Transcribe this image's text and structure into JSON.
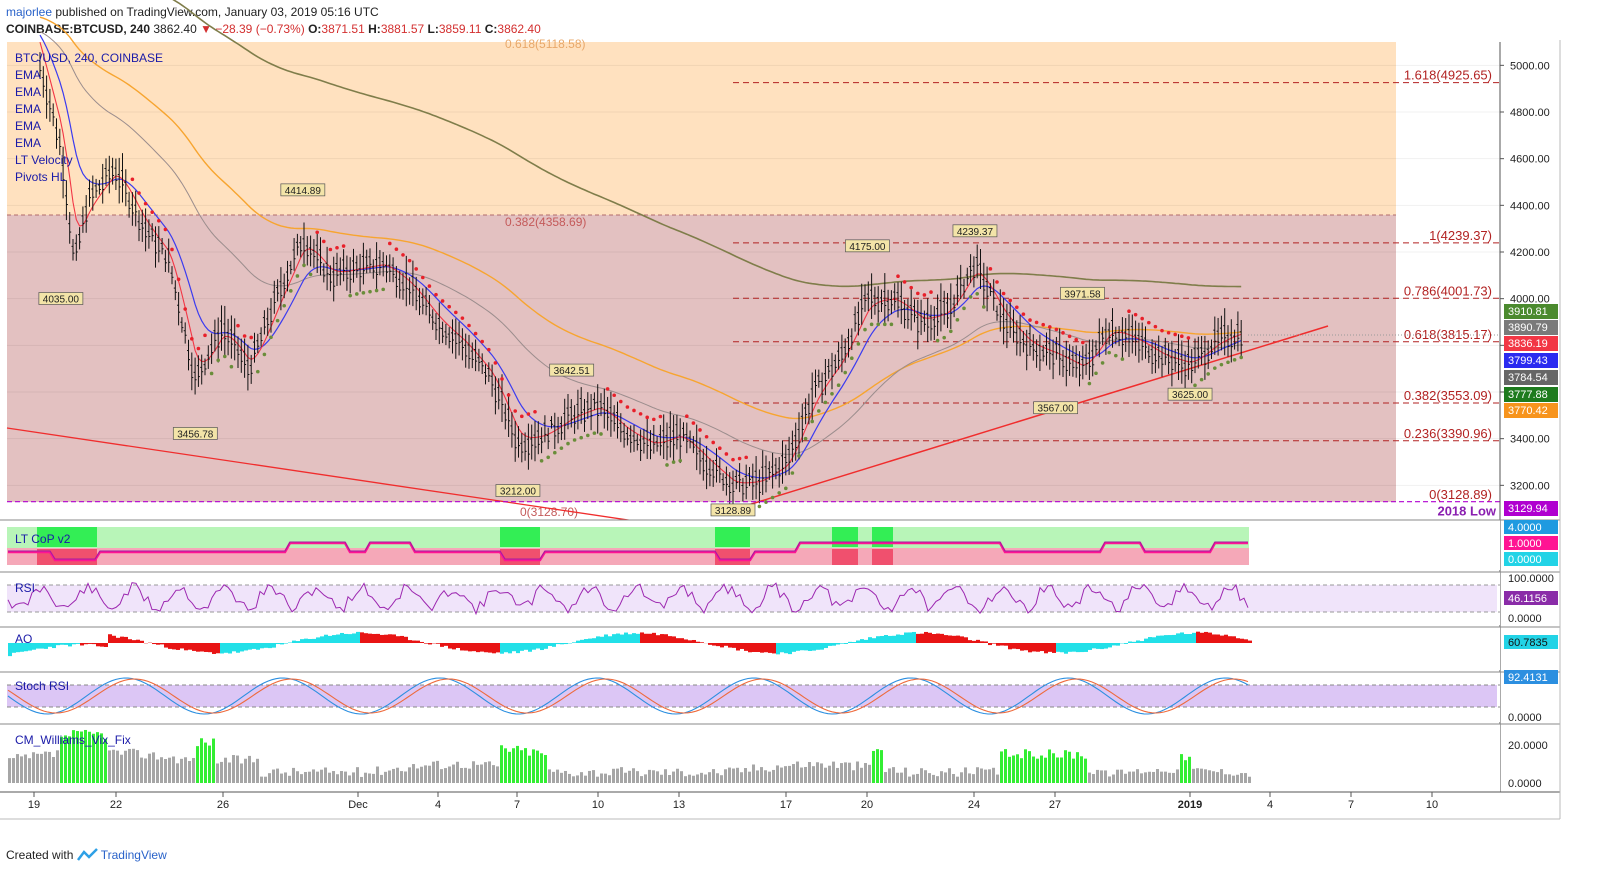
{
  "header": {
    "author": "majorlee",
    "published_text": "published on TradingView.com, January 03, 2019 05:16 UTC",
    "symbol": "COINBASE:BTCUSD, 240",
    "price": "3862.40",
    "change": "▼ −28.39 (−0.73%)",
    "o_label": "O:",
    "o_value": "3871.51",
    "h_label": "H:",
    "h_value": "3881.57",
    "l_label": "L:",
    "l_value": "3859.11",
    "c_label": "C:",
    "c_value": "3862.40"
  },
  "legend": [
    "BTC/USD, 240, COINBASE",
    "EMA",
    "EMA",
    "EMA",
    "EMA",
    "EMA",
    "LT Velocity",
    "Pivots HL"
  ],
  "panes": {
    "cop": "LT CoP v2",
    "rsi": "RSI",
    "ao": "AO",
    "stoch": "Stoch RSI",
    "vix": "CM_Williams_Vix_Fix"
  },
  "footer": {
    "created_with": "Created with",
    "brand": "TradingView"
  },
  "colors": {
    "up_zone": "#ffe1bf",
    "range_zone": "#e3c1c1",
    "ema_red": "#f23645",
    "ema_blue": "#3b3bf0",
    "ema_orange": "#f7a530",
    "ema_olive": "#7f7d4a",
    "ema_gray": "#9b8d8d",
    "trendline": "#f02d2d",
    "rsi": "#9c27b0",
    "ao_up": "#22e0e8",
    "ao_down": "#e81414",
    "stoch_k": "#2c8fe0",
    "stoch_d": "#ee6a3c",
    "vix_bar": "#a6a6a6",
    "vix_spike": "#33ee33"
  },
  "chart_data": {
    "type": "candlestick",
    "title": "BTC/USD, 240, COINBASE",
    "y_axis": {
      "ticks": [
        3200,
        3400,
        3600,
        3800,
        4000,
        4200,
        4400,
        4600,
        4800,
        5000
      ],
      "tick_labels": [
        "3200.00",
        "3400.00",
        "3600.00",
        "3800.00",
        "4000.00",
        "4200.00",
        "4400.00",
        "4600.00",
        "4800.00",
        "5000.00"
      ],
      "range": [
        3060,
        5100
      ]
    },
    "x_axis": {
      "tick_labels": [
        "19",
        "22",
        "26",
        "Dec",
        "4",
        "7",
        "10",
        "13",
        "17",
        "20",
        "24",
        "27",
        "2019",
        "4",
        "7",
        "10"
      ],
      "range": [
        "2018-11-19",
        "2019-01-10"
      ]
    },
    "price_path": [
      [
        "2018-11-19",
        5100
      ],
      [
        "2018-11-20",
        4650
      ],
      [
        "2018-11-20T12:00",
        4150
      ],
      [
        "2018-11-21",
        4420
      ],
      [
        "2018-11-22",
        4560
      ],
      [
        "2018-11-23",
        4320
      ],
      [
        "2018-11-24",
        4170
      ],
      [
        "2018-11-25",
        3650
      ],
      [
        "2018-11-26",
        3880
      ],
      [
        "2018-11-27",
        3700
      ],
      [
        "2018-11-28",
        4000
      ],
      [
        "2018-11-29",
        4260
      ],
      [
        "2018-11-30",
        4100
      ],
      [
        "2018-12-01",
        4130
      ],
      [
        "2018-12-02",
        4150
      ],
      [
        "2018-12-03",
        4050
      ],
      [
        "2018-12-04",
        3900
      ],
      [
        "2018-12-05",
        3800
      ],
      [
        "2018-12-06",
        3660
      ],
      [
        "2018-12-07",
        3380
      ],
      [
        "2018-12-08",
        3420
      ],
      [
        "2018-12-09",
        3500
      ],
      [
        "2018-12-10",
        3540
      ],
      [
        "2018-12-11",
        3430
      ],
      [
        "2018-12-12",
        3370
      ],
      [
        "2018-12-13",
        3420
      ],
      [
        "2018-12-14",
        3300
      ],
      [
        "2018-12-15",
        3200
      ],
      [
        "2018-12-16",
        3220
      ],
      [
        "2018-12-17",
        3300
      ],
      [
        "2018-12-18",
        3600
      ],
      [
        "2018-12-19",
        3750
      ],
      [
        "2018-12-20",
        4000
      ],
      [
        "2018-12-21",
        4000
      ],
      [
        "2018-12-22",
        3900
      ],
      [
        "2018-12-23",
        3950
      ],
      [
        "2018-12-24",
        4150
      ],
      [
        "2018-12-25",
        3920
      ],
      [
        "2018-12-26",
        3800
      ],
      [
        "2018-12-27",
        3760
      ],
      [
        "2018-12-28",
        3700
      ],
      [
        "2018-12-29",
        3880
      ],
      [
        "2018-12-30",
        3820
      ],
      [
        "2018-12-31",
        3750
      ],
      [
        "2019-01-01",
        3720
      ],
      [
        "2019-01-02",
        3820
      ],
      [
        "2019-01-03",
        3862.4
      ]
    ],
    "pivot_labels": [
      {
        "date": "2018-11-20",
        "price": 4035.0,
        "text": "4035.00"
      },
      {
        "date": "2018-11-25",
        "price": 3456.78,
        "text": "3456.78"
      },
      {
        "date": "2018-11-29",
        "price": 4414.89,
        "text": "4414.89"
      },
      {
        "date": "2018-12-07",
        "price": 3212.0,
        "text": "3212.00"
      },
      {
        "date": "2018-12-09",
        "price": 3642.51,
        "text": "3642.51"
      },
      {
        "date": "2018-12-15",
        "price": 3128.89,
        "text": "3128.89"
      },
      {
        "date": "2018-12-20",
        "price": 4175.0,
        "text": "4175.00"
      },
      {
        "date": "2018-12-24",
        "price": 4239.37,
        "text": "4239.37"
      },
      {
        "date": "2018-12-28",
        "price": 3971.58,
        "text": "3971.58"
      },
      {
        "date": "2018-12-27",
        "price": 3567.0,
        "text": "3567.00"
      },
      {
        "date": "2019-01-01",
        "price": 3625.0,
        "text": "3625.00"
      }
    ],
    "fib_upper": [
      {
        "price": 5118.58,
        "text": "0.618(5118.58)"
      },
      {
        "price": 4358.69,
        "text": "0.382(4358.69)"
      },
      {
        "price": 3128.7,
        "text": "0(3128.70)"
      }
    ],
    "fib_right": [
      {
        "price": 4925.65,
        "text": "1.618(4925.65)"
      },
      {
        "price": 4239.37,
        "text": "1(4239.37)"
      },
      {
        "price": 4001.73,
        "text": "0.786(4001.73)"
      },
      {
        "price": 3815.17,
        "text": "0.618(3815.17)"
      },
      {
        "price": 3553.09,
        "text": "0.382(3553.09)"
      },
      {
        "price": 3390.96,
        "text": "0.236(3390.96)"
      },
      {
        "price": 3128.89,
        "text": "0(3128.89)"
      }
    ],
    "low_line": {
      "price": 3129.94,
      "text": "2018 Low"
    },
    "price_tags": [
      {
        "price": 3910.81,
        "text": "3910.81",
        "color": "#4b8a2e"
      },
      {
        "price": 3890.79,
        "text": "3890.79",
        "color": "#7a7a7a"
      },
      {
        "price": 3836.19,
        "text": "3836.19",
        "color": "#f23645"
      },
      {
        "price": 3799.43,
        "text": "3799.43",
        "color": "#2b2bf0"
      },
      {
        "price": 3784.54,
        "text": "3784.54",
        "color": "#666666"
      },
      {
        "price": 3777.88,
        "text": "3777.88",
        "color": "#1e7b1e"
      },
      {
        "price": 3770.42,
        "text": "3770.42",
        "color": "#f7941d"
      },
      {
        "price": 3129.94,
        "text": "3129.94",
        "color": "#b000d0"
      }
    ],
    "indicators": {
      "cop": {
        "ticks": [
          "4.0000",
          "1.0000",
          "0.0000"
        ],
        "tick_colors": [
          "#1f9ae0",
          "#ff1493",
          "#22d3e6"
        ]
      },
      "rsi": {
        "ticks": [
          "100.0000",
          "0.0000"
        ],
        "last": "46.1156",
        "last_color": "#8a2ca8"
      },
      "ao": {
        "last": "60.7835",
        "last_color": "#22d3e6"
      },
      "stoch": {
        "ticks": [
          "0.0000"
        ],
        "last": "92.4131",
        "last_color": "#2c8fe0"
      },
      "vix": {
        "ticks": [
          "20.0000",
          "0.0000"
        ]
      }
    }
  }
}
